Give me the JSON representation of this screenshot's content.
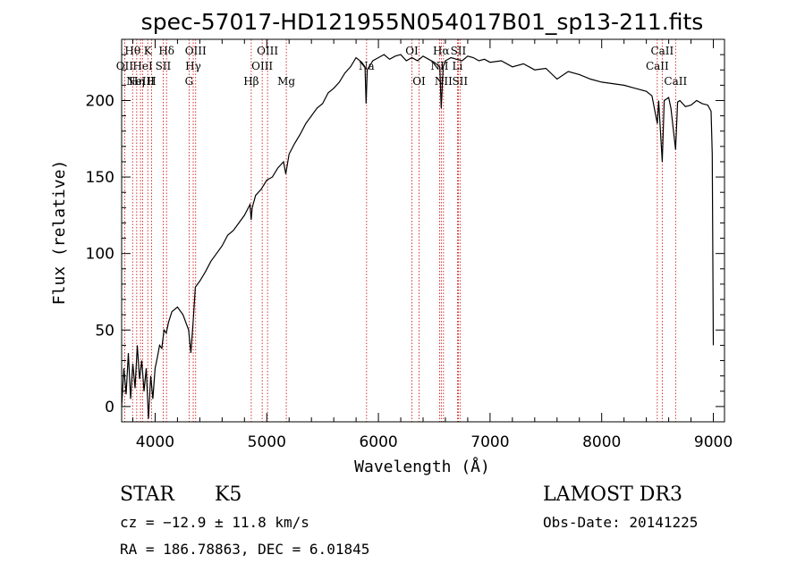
{
  "chart_data": {
    "type": "line",
    "title": "spec-57017-HD121955N054017B01_sp13-211.fits",
    "xlabel": "Wavelength (Å)",
    "ylabel": "Flux (relative)",
    "xlim": [
      3700,
      9100
    ],
    "ylim": [
      -10,
      240
    ],
    "xticks": [
      4000,
      5000,
      6000,
      7000,
      8000,
      9000
    ],
    "yticks": [
      0,
      50,
      100,
      150,
      200
    ],
    "grid": false,
    "series": [
      {
        "values": [
          [
            3700,
            0
          ],
          [
            3720,
            25
          ],
          [
            3740,
            8
          ],
          [
            3760,
            35
          ],
          [
            3780,
            5
          ],
          [
            3800,
            28
          ],
          [
            3820,
            12
          ],
          [
            3840,
            40
          ],
          [
            3860,
            18
          ],
          [
            3880,
            30
          ],
          [
            3900,
            10
          ],
          [
            3920,
            25
          ],
          [
            3940,
            -8
          ],
          [
            3960,
            20
          ],
          [
            3980,
            5
          ],
          [
            4000,
            25
          ],
          [
            4020,
            32
          ],
          [
            4040,
            40
          ],
          [
            4060,
            38
          ],
          [
            4080,
            50
          ],
          [
            4100,
            48
          ],
          [
            4120,
            55
          ],
          [
            4150,
            62
          ],
          [
            4200,
            65
          ],
          [
            4250,
            60
          ],
          [
            4300,
            50
          ],
          [
            4320,
            35
          ],
          [
            4340,
            55
          ],
          [
            4360,
            78
          ],
          [
            4400,
            82
          ],
          [
            4450,
            88
          ],
          [
            4500,
            95
          ],
          [
            4550,
            100
          ],
          [
            4600,
            105
          ],
          [
            4650,
            112
          ],
          [
            4700,
            115
          ],
          [
            4750,
            120
          ],
          [
            4800,
            125
          ],
          [
            4850,
            132
          ],
          [
            4860,
            122
          ],
          [
            4870,
            130
          ],
          [
            4900,
            138
          ],
          [
            4950,
            142
          ],
          [
            5000,
            148
          ],
          [
            5050,
            150
          ],
          [
            5100,
            156
          ],
          [
            5150,
            160
          ],
          [
            5170,
            152
          ],
          [
            5200,
            165
          ],
          [
            5250,
            172
          ],
          [
            5300,
            178
          ],
          [
            5350,
            185
          ],
          [
            5400,
            190
          ],
          [
            5450,
            195
          ],
          [
            5500,
            198
          ],
          [
            5550,
            205
          ],
          [
            5600,
            208
          ],
          [
            5650,
            212
          ],
          [
            5700,
            218
          ],
          [
            5750,
            222
          ],
          [
            5800,
            228
          ],
          [
            5850,
            225
          ],
          [
            5880,
            222
          ],
          [
            5890,
            198
          ],
          [
            5900,
            220
          ],
          [
            5950,
            226
          ],
          [
            6000,
            228
          ],
          [
            6050,
            230
          ],
          [
            6100,
            227
          ],
          [
            6150,
            229
          ],
          [
            6200,
            230
          ],
          [
            6250,
            226
          ],
          [
            6300,
            228
          ],
          [
            6350,
            226
          ],
          [
            6400,
            229
          ],
          [
            6450,
            227
          ],
          [
            6500,
            225
          ],
          [
            6550,
            222
          ],
          [
            6563,
            195
          ],
          [
            6580,
            222
          ],
          [
            6600,
            226
          ],
          [
            6650,
            228
          ],
          [
            6700,
            227
          ],
          [
            6750,
            226
          ],
          [
            6800,
            229
          ],
          [
            6850,
            228
          ],
          [
            6900,
            226
          ],
          [
            6950,
            227
          ],
          [
            7000,
            225
          ],
          [
            7100,
            226
          ],
          [
            7200,
            222
          ],
          [
            7300,
            224
          ],
          [
            7400,
            220
          ],
          [
            7500,
            221
          ],
          [
            7600,
            214
          ],
          [
            7700,
            219
          ],
          [
            7800,
            217
          ],
          [
            7900,
            214
          ],
          [
            8000,
            212
          ],
          [
            8100,
            211
          ],
          [
            8200,
            210
          ],
          [
            8300,
            208
          ],
          [
            8400,
            206
          ],
          [
            8450,
            203
          ],
          [
            8498,
            185
          ],
          [
            8510,
            200
          ],
          [
            8542,
            160
          ],
          [
            8560,
            200
          ],
          [
            8600,
            202
          ],
          [
            8620,
            195
          ],
          [
            8662,
            168
          ],
          [
            8680,
            199
          ],
          [
            8700,
            200
          ],
          [
            8750,
            196
          ],
          [
            8800,
            197
          ],
          [
            8850,
            200
          ],
          [
            8900,
            198
          ],
          [
            8950,
            197
          ],
          [
            8980,
            193
          ],
          [
            8990,
            165
          ],
          [
            9000,
            40
          ]
        ]
      }
    ],
    "lines": [
      {
        "x": 3727,
        "label": "OII",
        "row": 1
      },
      {
        "x": 3798,
        "label": "Hθ",
        "row": 0
      },
      {
        "x": 3835,
        "label": "Hη",
        "row": 2
      },
      {
        "x": 3869,
        "label": "NeIII",
        "row": 2
      },
      {
        "x": 3889,
        "label": "HeI",
        "row": 1
      },
      {
        "x": 3934,
        "label": "K",
        "row": 0
      },
      {
        "x": 3968,
        "label": "H",
        "row": 2
      },
      {
        "x": 4072,
        "label": "SII",
        "row": 1
      },
      {
        "x": 4102,
        "label": "Hδ",
        "row": 0
      },
      {
        "x": 4304,
        "label": "G",
        "row": 2
      },
      {
        "x": 4341,
        "label": "Hγ",
        "row": 1
      },
      {
        "x": 4363,
        "label": "OIII",
        "row": 0
      },
      {
        "x": 4861,
        "label": "Hβ",
        "row": 2
      },
      {
        "x": 4959,
        "label": "OIII",
        "row": 1
      },
      {
        "x": 5007,
        "label": "OIII",
        "row": 0
      },
      {
        "x": 5175,
        "label": "Mg",
        "row": 2
      },
      {
        "x": 5894,
        "label": "Na",
        "row": 1
      },
      {
        "x": 6300,
        "label": "OI",
        "row": 0
      },
      {
        "x": 6364,
        "label": "OI",
        "row": 2
      },
      {
        "x": 6548,
        "label": "NII",
        "row": 1
      },
      {
        "x": 6563,
        "label": "Hα",
        "row": 0
      },
      {
        "x": 6583,
        "label": "NII",
        "row": 2
      },
      {
        "x": 6708,
        "label": "Li",
        "row": 1
      },
      {
        "x": 6716,
        "label": "SII",
        "row": 0
      },
      {
        "x": 6731,
        "label": "SII",
        "row": 2
      },
      {
        "x": 8498,
        "label": "CaII",
        "row": 1
      },
      {
        "x": 8542,
        "label": "CaII",
        "row": 0
      },
      {
        "x": 8662,
        "label": "CaII",
        "row": 2
      }
    ]
  },
  "info": {
    "class": "STAR",
    "subclass": "K5",
    "survey": "LAMOST DR3",
    "redshift": "cz = −12.9 ± 11.8 km/s",
    "obs_date": "Obs-Date: 20141225",
    "coords": "RA = 186.78863, DEC =   6.01845"
  },
  "colors": {
    "spectrum": "#000000",
    "line_markers": "#cc0000"
  }
}
